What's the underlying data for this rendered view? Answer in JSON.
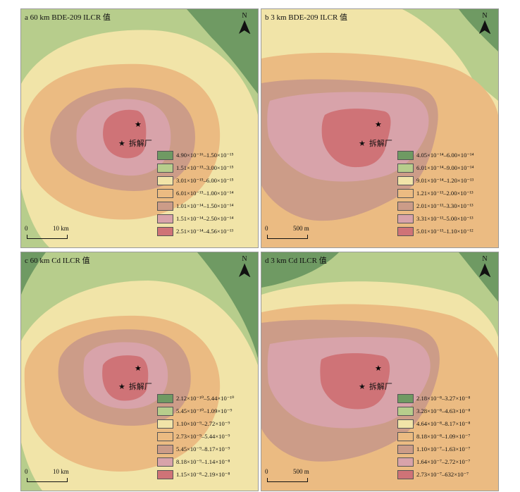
{
  "colors": [
    "#6f9a63",
    "#b7cd8c",
    "#f1e4a8",
    "#ebbb82",
    "#cc9c88",
    "#d8a3aa",
    "#cf7377"
  ],
  "site_label": "拆解厂",
  "north_label": "N",
  "panels": [
    {
      "id": "a",
      "title": "a 60 km BDE-209 ILCR 值",
      "scale": {
        "zero": "0",
        "label": "10 km"
      },
      "legend": [
        {
          "text": "4.90×10⁻¹⁶–1.50×10⁻¹⁵"
        },
        {
          "text": "1.51×10⁻¹⁵–3.00×10⁻¹⁵"
        },
        {
          "text": "3.01×10⁻¹⁵–6.00×10⁻¹⁵"
        },
        {
          "text": "6.01×10⁻¹⁵–1.00×10⁻¹⁴"
        },
        {
          "text": "1.01×10⁻¹⁴–1.50×10⁻¹⁴"
        },
        {
          "text": "1.51×10⁻¹⁴–2.50×10⁻¹⁴"
        },
        {
          "text": "2.51×10⁻¹⁴–4.56×10⁻¹³"
        }
      ]
    },
    {
      "id": "b",
      "title": "b 3 km BDE-209 ILCR 值",
      "scale": {
        "zero": "0",
        "label": "500 m"
      },
      "legend": [
        {
          "text": "4.05×10⁻¹⁴–6.00×10⁻¹⁴"
        },
        {
          "text": "6.01×10⁻¹⁴–9.00×10⁻¹⁴"
        },
        {
          "text": "9.01×10⁻¹⁴–1.20×10⁻¹³"
        },
        {
          "text": "1.21×10⁻¹³–2.00×10⁻¹³"
        },
        {
          "text": "2.01×10⁻¹³–3.30×10⁻¹³"
        },
        {
          "text": "3.31×10⁻¹³–5.00×10⁻¹³"
        },
        {
          "text": "5.01×10⁻¹³–1.10×10⁻¹²"
        }
      ]
    },
    {
      "id": "c",
      "title": "c 60 km Cd ILCR 值",
      "scale": {
        "zero": "0",
        "label": "10 km"
      },
      "legend": [
        {
          "text": "2.12×10⁻¹⁰–5.44×10⁻¹⁰"
        },
        {
          "text": "5.45×10⁻¹⁰–1.09×10⁻⁹"
        },
        {
          "text": "1.10×10⁻⁹–2.72×10⁻⁹"
        },
        {
          "text": "2.73×10⁻⁹–5.44×10⁻⁹"
        },
        {
          "text": "5.45×10⁻⁹–8.17×10⁻⁹"
        },
        {
          "text": "8.18×10⁻⁹–1.14×10⁻⁸"
        },
        {
          "text": "1.15×10⁻⁸–2.19×10⁻⁸"
        }
      ]
    },
    {
      "id": "d",
      "title": "d 3 km Cd ILCR 值",
      "scale": {
        "zero": "0",
        "label": "500 m"
      },
      "legend": [
        {
          "text": "2.18×10⁻⁸–3.27×10⁻⁸"
        },
        {
          "text": "3.28×10⁻⁸–4.63×10⁻⁸"
        },
        {
          "text": "4.64×10⁻⁸–8.17×10⁻⁸"
        },
        {
          "text": "8.18×10⁻⁸–1.09×10⁻⁷"
        },
        {
          "text": "1.10×10⁻⁷–1.63×10⁻⁷"
        },
        {
          "text": "1.64×10⁻⁷–2.72×10⁻⁷"
        },
        {
          "text": "2.73×10⁻⁷–632×10⁻⁷"
        }
      ]
    }
  ]
}
